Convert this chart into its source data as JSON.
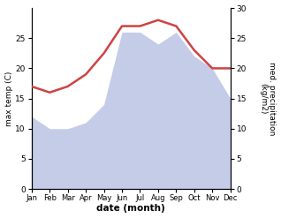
{
  "months": [
    "Jan",
    "Feb",
    "Mar",
    "Apr",
    "May",
    "Jun",
    "Jul",
    "Aug",
    "Sep",
    "Oct",
    "Nov",
    "Dec"
  ],
  "temperature": [
    17.0,
    16.0,
    17.0,
    19.0,
    22.5,
    27.0,
    27.0,
    28.0,
    27.0,
    23.0,
    20.0,
    20.0
  ],
  "precipitation": [
    12,
    10,
    10,
    11,
    14,
    26,
    26,
    24,
    26,
    22,
    20,
    15
  ],
  "temp_color": "#cc4444",
  "precip_fill_color": "#c5cce8",
  "left_label": "max temp (C)",
  "right_label": "med. precipitation\n(kg/m2)",
  "bottom_label": "date (month)",
  "ylim_left": [
    0,
    30
  ],
  "ylim_right": [
    0,
    30
  ],
  "left_yticks": [
    0,
    5,
    10,
    15,
    20,
    25
  ],
  "right_yticks": [
    0,
    5,
    10,
    15,
    20,
    25,
    30
  ],
  "background_color": "#ffffff"
}
